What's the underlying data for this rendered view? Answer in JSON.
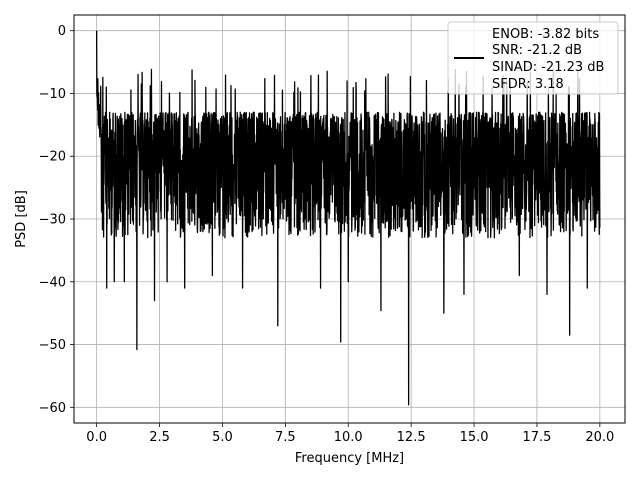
{
  "chart_data": {
    "type": "line",
    "title": "",
    "xlabel": "Frequency [MHz]",
    "ylabel": "PSD [dB]",
    "xlim": [
      -0.9,
      21.0
    ],
    "ylim": [
      -62.5,
      2.5
    ],
    "xticks": [
      0.0,
      2.5,
      5.0,
      7.5,
      10.0,
      12.5,
      15.0,
      17.5,
      20.0
    ],
    "xtick_labels": [
      "0.0",
      "2.5",
      "5.0",
      "7.5",
      "10.0",
      "12.5",
      "15.0",
      "17.5",
      "20.0"
    ],
    "yticks": [
      0,
      -10,
      -20,
      -30,
      -40,
      -50,
      -60
    ],
    "ytick_labels": [
      "0",
      "−10",
      "−20",
      "−30",
      "−40",
      "−50",
      "−60"
    ],
    "grid": true,
    "legend_position": "upper-right",
    "legend_lines": [
      "ENOB: -3.82 bits",
      "SNR: -21.2 dB",
      "SINAD: -21.23 dB",
      "SFDR: 3.18"
    ],
    "series": [
      {
        "color": "#000000",
        "x_start": 0.0,
        "x_end": 20.0,
        "peak": [
          0.0,
          0.0
        ],
        "noise_upper_approx": -13,
        "noise_floor_typical": -22,
        "dips": [
          [
            0.4,
            -41
          ],
          [
            0.7,
            -40
          ],
          [
            1.1,
            -40
          ],
          [
            1.6,
            -50.8
          ],
          [
            2.3,
            -43
          ],
          [
            2.8,
            -40
          ],
          [
            3.5,
            -41
          ],
          [
            4.6,
            -39
          ],
          [
            5.8,
            -41
          ],
          [
            7.2,
            -47
          ],
          [
            8.9,
            -41
          ],
          [
            9.7,
            -49.6
          ],
          [
            10.0,
            -40
          ],
          [
            11.3,
            -44.6
          ],
          [
            12.4,
            -59.6
          ],
          [
            13.8,
            -45
          ],
          [
            14.6,
            -42
          ],
          [
            16.8,
            -39
          ],
          [
            17.9,
            -42
          ],
          [
            18.8,
            -48.5
          ],
          [
            19.5,
            -41
          ]
        ]
      }
    ]
  }
}
